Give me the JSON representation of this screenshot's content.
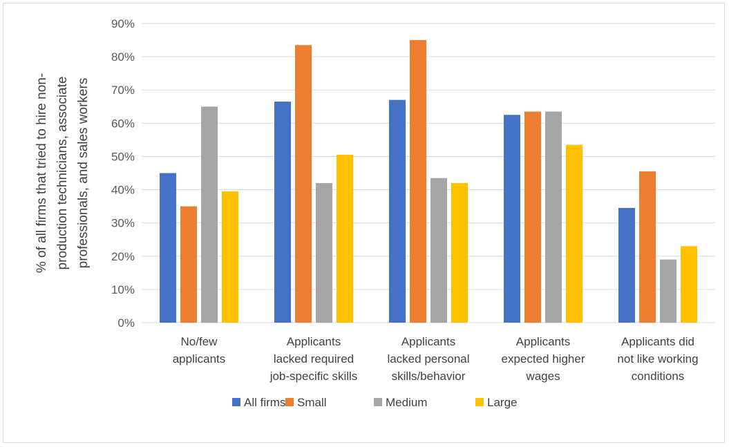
{
  "chart_data": {
    "type": "bar",
    "title": "",
    "ylabel_lines": [
      "% of all firms that tried to hire non-",
      "production  technicians, associate",
      "professionals, and sales workers"
    ],
    "categories": [
      [
        "No/few",
        "applicants"
      ],
      [
        "Applicants",
        "lacked required",
        "job-specific skills"
      ],
      [
        "Applicants",
        "lacked personal",
        "skills/behavior"
      ],
      [
        "Applicants",
        "expected higher",
        "wages"
      ],
      [
        "Applicants did",
        "not like working",
        "conditions"
      ]
    ],
    "series": [
      {
        "name": "All firms",
        "color": "#4472c4",
        "values": [
          45,
          66.5,
          67,
          62.5,
          34.5
        ]
      },
      {
        "name": "Small",
        "color": "#ed7d31",
        "values": [
          35,
          83.5,
          85,
          63.5,
          45.5
        ]
      },
      {
        "name": "Medium",
        "color": "#a5a5a5",
        "values": [
          65,
          42,
          43.5,
          63.5,
          19
        ]
      },
      {
        "name": "Large",
        "color": "#ffc000",
        "values": [
          39.5,
          50.5,
          42,
          53.5,
          23
        ]
      }
    ],
    "ylim": [
      0,
      90
    ],
    "yticks": [
      "0%",
      "10%",
      "20%",
      "30%",
      "40%",
      "50%",
      "60%",
      "70%",
      "80%",
      "90%"
    ],
    "grid": true,
    "legend_position": "bottom"
  }
}
